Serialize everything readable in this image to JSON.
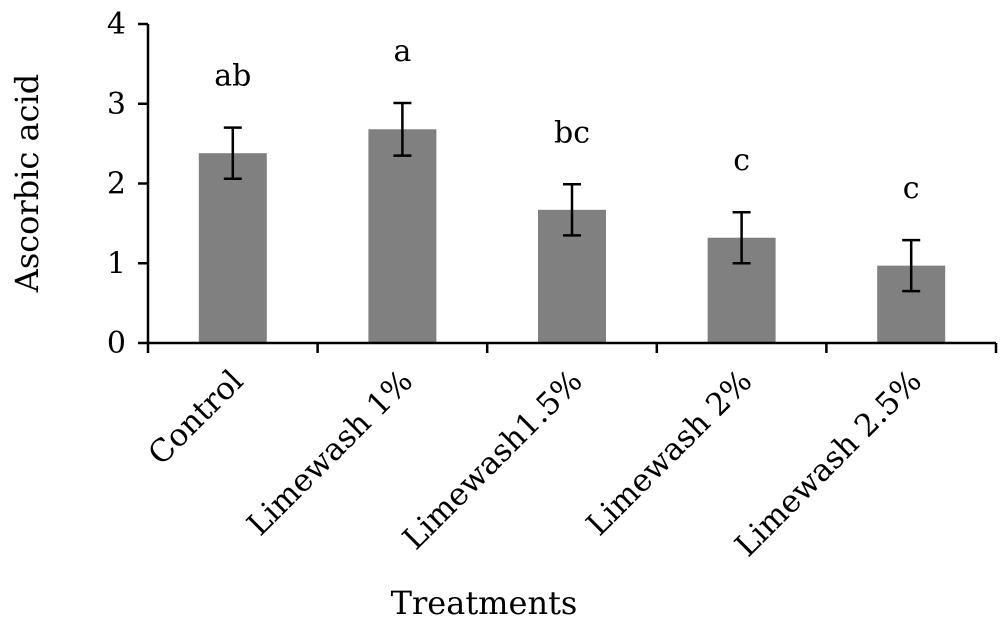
{
  "chart_data": {
    "type": "bar",
    "title": "",
    "xlabel": "Treatments",
    "ylabel": "Ascorbic acid",
    "ylim": [
      0,
      4
    ],
    "yticks": [
      "0",
      "1",
      "2",
      "3",
      "4"
    ],
    "categories": [
      "Control",
      "Limewash 1%",
      "Limewash1.5%",
      "Limewash 2%",
      "Limewash 2.5%"
    ],
    "values": [
      2.38,
      2.68,
      1.67,
      1.32,
      0.97
    ],
    "error": [
      0.32,
      0.33,
      0.32,
      0.32,
      0.32
    ],
    "significance_letters": [
      "ab",
      "a",
      "bc",
      "c",
      "c"
    ],
    "grid": false,
    "legend": "none",
    "bar_color": "#808080",
    "axis_color": "#000000"
  }
}
